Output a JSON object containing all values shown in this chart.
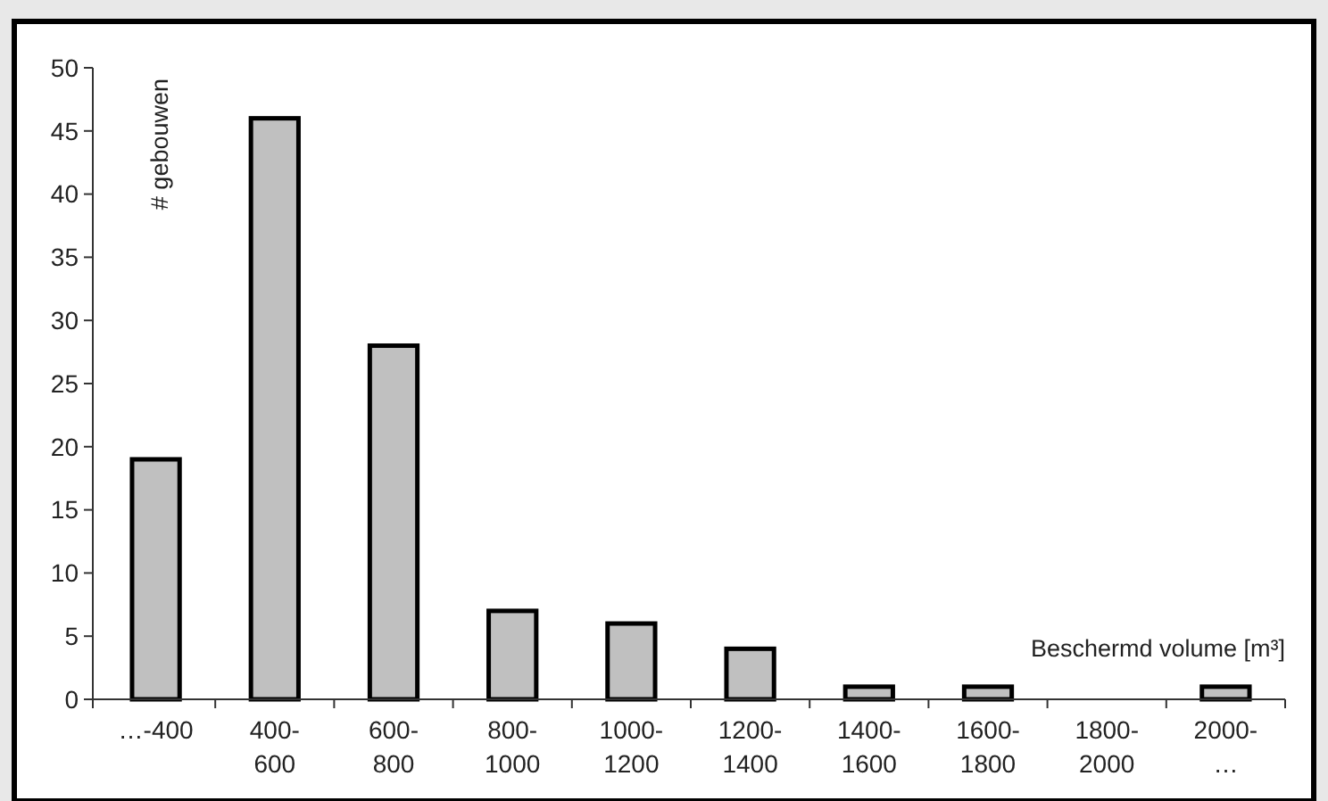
{
  "chart_data": {
    "type": "bar",
    "xlabel": "Beschermd volume [m³]",
    "ylabel": "# gebouwen",
    "categories": [
      "…-400",
      "400-\n600",
      "600-\n800",
      "800-\n1000",
      "1000-\n1200",
      "1200-\n1400",
      "1400-\n1600",
      "1600-\n1800",
      "1800-\n2000",
      "2000-\n…"
    ],
    "values": [
      19,
      46,
      28,
      7,
      6,
      4,
      1,
      1,
      0,
      1
    ],
    "color": "#c0c0c0",
    "ylim": [
      0,
      50
    ],
    "yticks": [
      0,
      5,
      10,
      15,
      20,
      25,
      30,
      35,
      40,
      45,
      50
    ]
  }
}
